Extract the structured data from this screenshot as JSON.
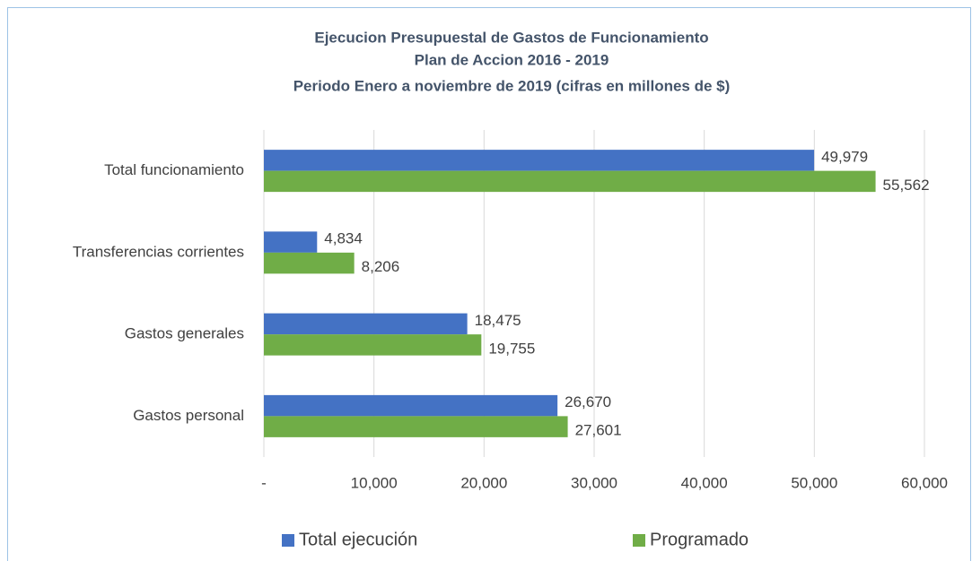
{
  "chart_data": {
    "type": "hbar",
    "title": "Ejecucion Presupuestal de Gastos de Funcionamiento",
    "subtitle": [
      "Plan de Accion 2016 - 2019",
      "Periodo Enero a noviembre de 2019 (cifras en millones de $)"
    ],
    "categories": [
      "Total funcionamiento",
      "Transferencias corrientes",
      "Gastos generales",
      "Gastos personal"
    ],
    "series": [
      {
        "name": "Total ejecución",
        "color": "#4472c4",
        "values": [
          49979,
          4834,
          18475,
          26670
        ],
        "value_labels": [
          "49,979",
          "4,834",
          "18,475",
          "26,670"
        ]
      },
      {
        "name": "Programado",
        "color": "#70ad47",
        "values": [
          55562,
          8206,
          19755,
          27601
        ],
        "value_labels": [
          "55,562",
          "8,206",
          "19,755",
          "27,601"
        ]
      }
    ],
    "xlim": [
      0,
      60000
    ],
    "xticks": [
      {
        "value": 0,
        "label": "-"
      },
      {
        "value": 10000,
        "label": "10,000"
      },
      {
        "value": 20000,
        "label": "20,000"
      },
      {
        "value": 30000,
        "label": "30,000"
      },
      {
        "value": 40000,
        "label": "40,000"
      },
      {
        "value": 50000,
        "label": "50,000"
      },
      {
        "value": 60000,
        "label": "60,000"
      }
    ],
    "grid": true,
    "legend": "bottom"
  }
}
